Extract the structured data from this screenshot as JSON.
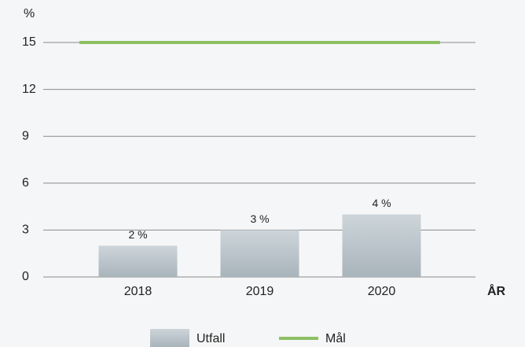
{
  "chart_data": {
    "type": "bar",
    "categories": [
      "2018",
      "2019",
      "2020"
    ],
    "series": [
      {
        "name": "Utfall",
        "type": "bar",
        "color": "#b8c2c8",
        "values": [
          2,
          3,
          4
        ],
        "value_labels": [
          "2 %",
          "3 %",
          "4 %"
        ]
      },
      {
        "name": "Mål",
        "type": "line",
        "color": "#8cc063",
        "values": [
          15,
          15,
          15
        ]
      }
    ],
    "ylabel": "%",
    "xlabel": "ÅR",
    "ylim": [
      0,
      15
    ],
    "yticks": [
      0,
      3,
      6,
      9,
      12,
      15
    ],
    "grid": true,
    "legend": "bottom"
  }
}
